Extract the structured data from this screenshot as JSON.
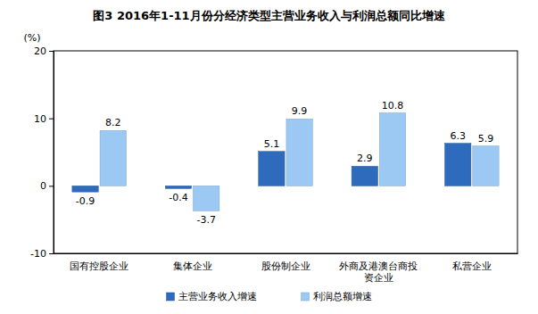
{
  "chart_data": {
    "type": "bar",
    "title": "图3 2016年1-11月份分经济类型主营业务收入与利润总额同比增速",
    "ylabel": "(%)",
    "categories": [
      "国有控股企业",
      "集体企业",
      "股份制企业",
      "外商及港澳台商投资企业",
      "私营企业"
    ],
    "series": [
      {
        "name": "主营业务收入增速",
        "color": "#2f6bbd",
        "values": [
          -0.9,
          -0.4,
          5.1,
          2.9,
          6.3
        ]
      },
      {
        "name": "利润总额增速",
        "color": "#9cc9f4",
        "values": [
          8.2,
          -3.7,
          9.9,
          10.8,
          5.9
        ]
      }
    ],
    "ylim": [
      -10,
      20
    ],
    "yticks": [
      -10,
      0,
      10,
      20
    ],
    "grid": false,
    "data_labels": true,
    "legend": "bottom"
  }
}
